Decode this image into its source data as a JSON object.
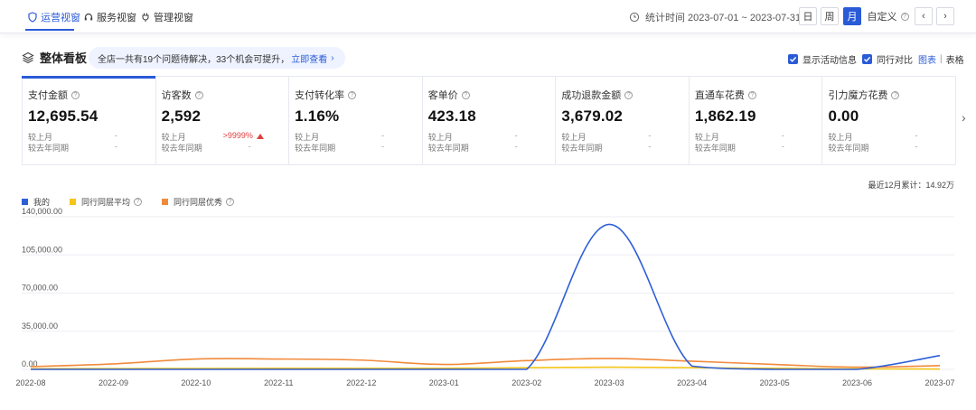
{
  "nav": {
    "tabs": [
      {
        "label": "运营视窗",
        "icon": "shield-icon",
        "active": true
      },
      {
        "label": "服务视窗",
        "icon": "headset-icon",
        "active": false
      },
      {
        "label": "管理视窗",
        "icon": "plug-icon",
        "active": false
      }
    ],
    "stat_time": "统计时间 2023-07-01 ~ 2023-07-31",
    "periods": [
      "日",
      "周",
      "月"
    ],
    "active_period": "月",
    "custom_label": "自定义",
    "prev_label": "‹",
    "next_label": "›"
  },
  "section": {
    "title": "整体看板",
    "notice_text": "全店一共有19个问题待解决，33个机会可提升，",
    "notice_link": "立即查看",
    "option_activity": "显示活动信息",
    "option_peer": "同行对比",
    "view_chart": "图表",
    "view_sep": "|",
    "view_table": "表格"
  },
  "kpis": [
    {
      "label": "支付金额",
      "value": "12,695.54",
      "mom_label": "较上月",
      "mom_value": "-",
      "yoy_label": "较去年同期",
      "yoy_value": "-",
      "active": true
    },
    {
      "label": "访客数",
      "value": "2,592",
      "mom_label": "较上月",
      "mom_value": ">9999%",
      "yoy_label": "较去年同期",
      "yoy_value": "-",
      "active": false
    },
    {
      "label": "支付转化率",
      "value": "1.16%",
      "mom_label": "较上月",
      "mom_value": "-",
      "yoy_label": "较去年同期",
      "yoy_value": "-",
      "active": false
    },
    {
      "label": "客单价",
      "value": "423.18",
      "mom_label": "较上月",
      "mom_value": "-",
      "yoy_label": "较去年同期",
      "yoy_value": "-",
      "active": false
    },
    {
      "label": "成功退款金额",
      "value": "3,679.02",
      "mom_label": "较上月",
      "mom_value": "-",
      "yoy_label": "较去年同期",
      "yoy_value": "-",
      "active": false
    },
    {
      "label": "直通车花费",
      "value": "1,862.19",
      "mom_label": "较上月",
      "mom_value": "-",
      "yoy_label": "较去年同期",
      "yoy_value": "-",
      "active": false
    },
    {
      "label": "引力魔方花费",
      "value": "0.00",
      "mom_label": "较上月",
      "mom_value": "-",
      "yoy_label": "较去年同期",
      "yoy_value": "-",
      "active": false
    }
  ],
  "kpi_next_label": "›",
  "chart_summary": "最近12月累计：14.92万",
  "chart_data": {
    "type": "line",
    "x": [
      "2022-08",
      "2022-09",
      "2022-10",
      "2022-11",
      "2022-12",
      "2023-01",
      "2023-02",
      "2023-03",
      "2023-04",
      "2023-05",
      "2023-06",
      "2023-07"
    ],
    "ylim": [
      0,
      140000
    ],
    "yticks": [
      "0.00",
      "35,000.00",
      "70,000.00",
      "105,000.00",
      "140,000.00"
    ],
    "ytick_values": [
      0,
      35000,
      70000,
      105000,
      140000
    ],
    "grid": true,
    "legend_position": "top-left",
    "series": [
      {
        "name": "我的",
        "color": "#2f5fd7",
        "values": [
          0,
          0,
          0,
          0,
          0,
          0,
          0,
          133000,
          3000,
          0,
          0,
          12700
        ]
      },
      {
        "name": "同行同层平均",
        "color": "#f5c518",
        "values": [
          500,
          700,
          800,
          1000,
          1000,
          1000,
          1500,
          2000,
          1500,
          1000,
          500,
          300
        ]
      },
      {
        "name": "同行同层优秀",
        "color": "#f08a3c",
        "values": [
          2500,
          5000,
          9500,
          9500,
          8500,
          4500,
          8000,
          10000,
          7500,
          4500,
          2000,
          3500
        ]
      }
    ]
  }
}
